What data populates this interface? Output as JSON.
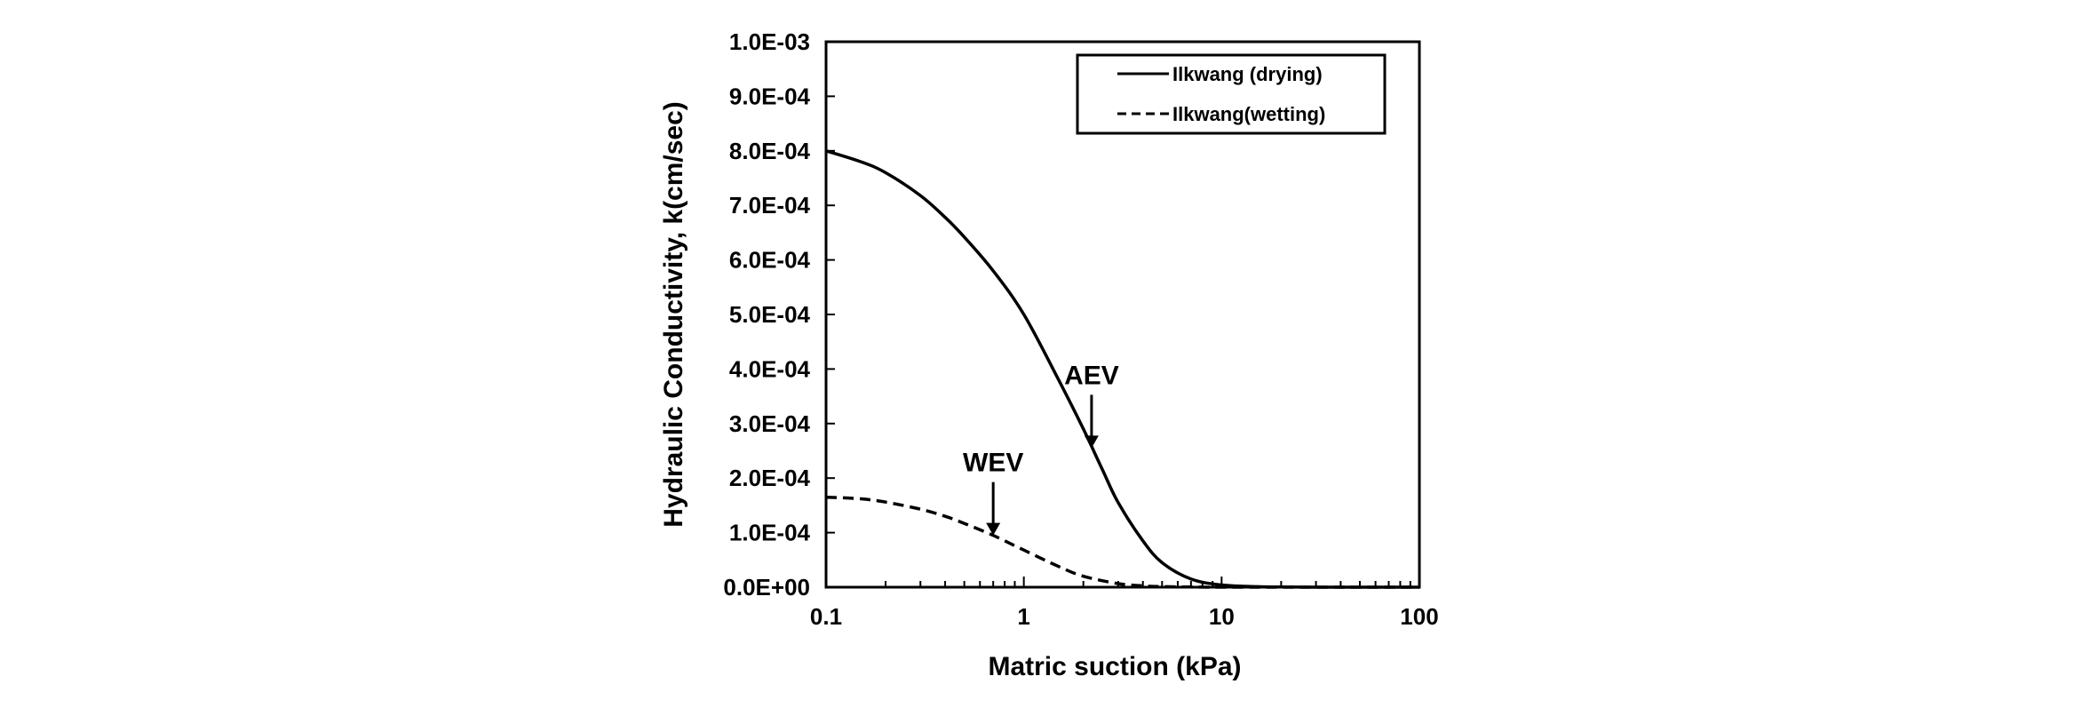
{
  "chart_data": {
    "type": "line",
    "title": "",
    "xlabel": "Matric suction (kPa)",
    "ylabel": "Hydraulic Conductivity,  k(cm/sec)",
    "xscale": "log",
    "xlim": [
      0.1,
      100
    ],
    "ylim": [
      0,
      0.001
    ],
    "grid": false,
    "legend_position": "top-right",
    "x_ticks": [
      {
        "value": 0.1,
        "label": "0.1"
      },
      {
        "value": 1,
        "label": "1"
      },
      {
        "value": 10,
        "label": "10"
      },
      {
        "value": 100,
        "label": "100"
      }
    ],
    "y_ticks": [
      {
        "value": 0.0,
        "label": "0.0E+00"
      },
      {
        "value": 0.0001,
        "label": "1.0E-04"
      },
      {
        "value": 0.0002,
        "label": "2.0E-04"
      },
      {
        "value": 0.0003,
        "label": "3.0E-04"
      },
      {
        "value": 0.0004,
        "label": "4.0E-04"
      },
      {
        "value": 0.0005,
        "label": "5.0E-04"
      },
      {
        "value": 0.0006,
        "label": "6.0E-04"
      },
      {
        "value": 0.0007,
        "label": "7.0E-04"
      },
      {
        "value": 0.0008,
        "label": "8.0E-04"
      },
      {
        "value": 0.0009,
        "label": "9.0E-04"
      },
      {
        "value": 0.001,
        "label": "1.0E-03"
      }
    ],
    "series": [
      {
        "name": "Ilkwang (drying)",
        "style": "solid",
        "color": "#000000",
        "x": [
          0.1,
          0.15,
          0.2,
          0.3,
          0.4,
          0.5,
          0.7,
          1.0,
          1.5,
          2.0,
          2.5,
          3.0,
          4.0,
          5.0,
          7.0,
          10.0,
          15.0,
          20.0,
          30.0,
          50.0,
          100.0
        ],
        "y": [
          0.0008,
          0.00078,
          0.00076,
          0.000718,
          0.000678,
          0.000642,
          0.00058,
          0.0005,
          0.00038,
          0.00029,
          0.000215,
          0.000155,
          8.5e-05,
          4.5e-05,
          1.5e-05,
          4e-06,
          1e-06,
          3e-07,
          0.0,
          0.0,
          0.0
        ]
      },
      {
        "name": "Ilkwang(wetting)",
        "style": "dashed",
        "color": "#000000",
        "x": [
          0.1,
          0.15,
          0.2,
          0.3,
          0.4,
          0.5,
          0.7,
          1.0,
          1.5,
          2.0,
          3.0,
          4.0,
          5.0,
          7.0,
          10.0,
          20.0,
          50.0,
          100.0
        ],
        "y": [
          0.000165,
          0.000162,
          0.000156,
          0.000143,
          0.00013,
          0.000117,
          9.5e-05,
          6.8e-05,
          3.8e-05,
          2e-05,
          6.5e-06,
          2.5e-06,
          1.1e-06,
          3e-07,
          0.0,
          0.0,
          0.0,
          0.0
        ]
      }
    ],
    "annotations": [
      {
        "text": "AEV",
        "x": 2.2,
        "y": 0.000255,
        "arrow": "down"
      },
      {
        "text": "WEV",
        "x": 0.7,
        "y": 9.5e-05,
        "arrow": "down"
      }
    ]
  }
}
